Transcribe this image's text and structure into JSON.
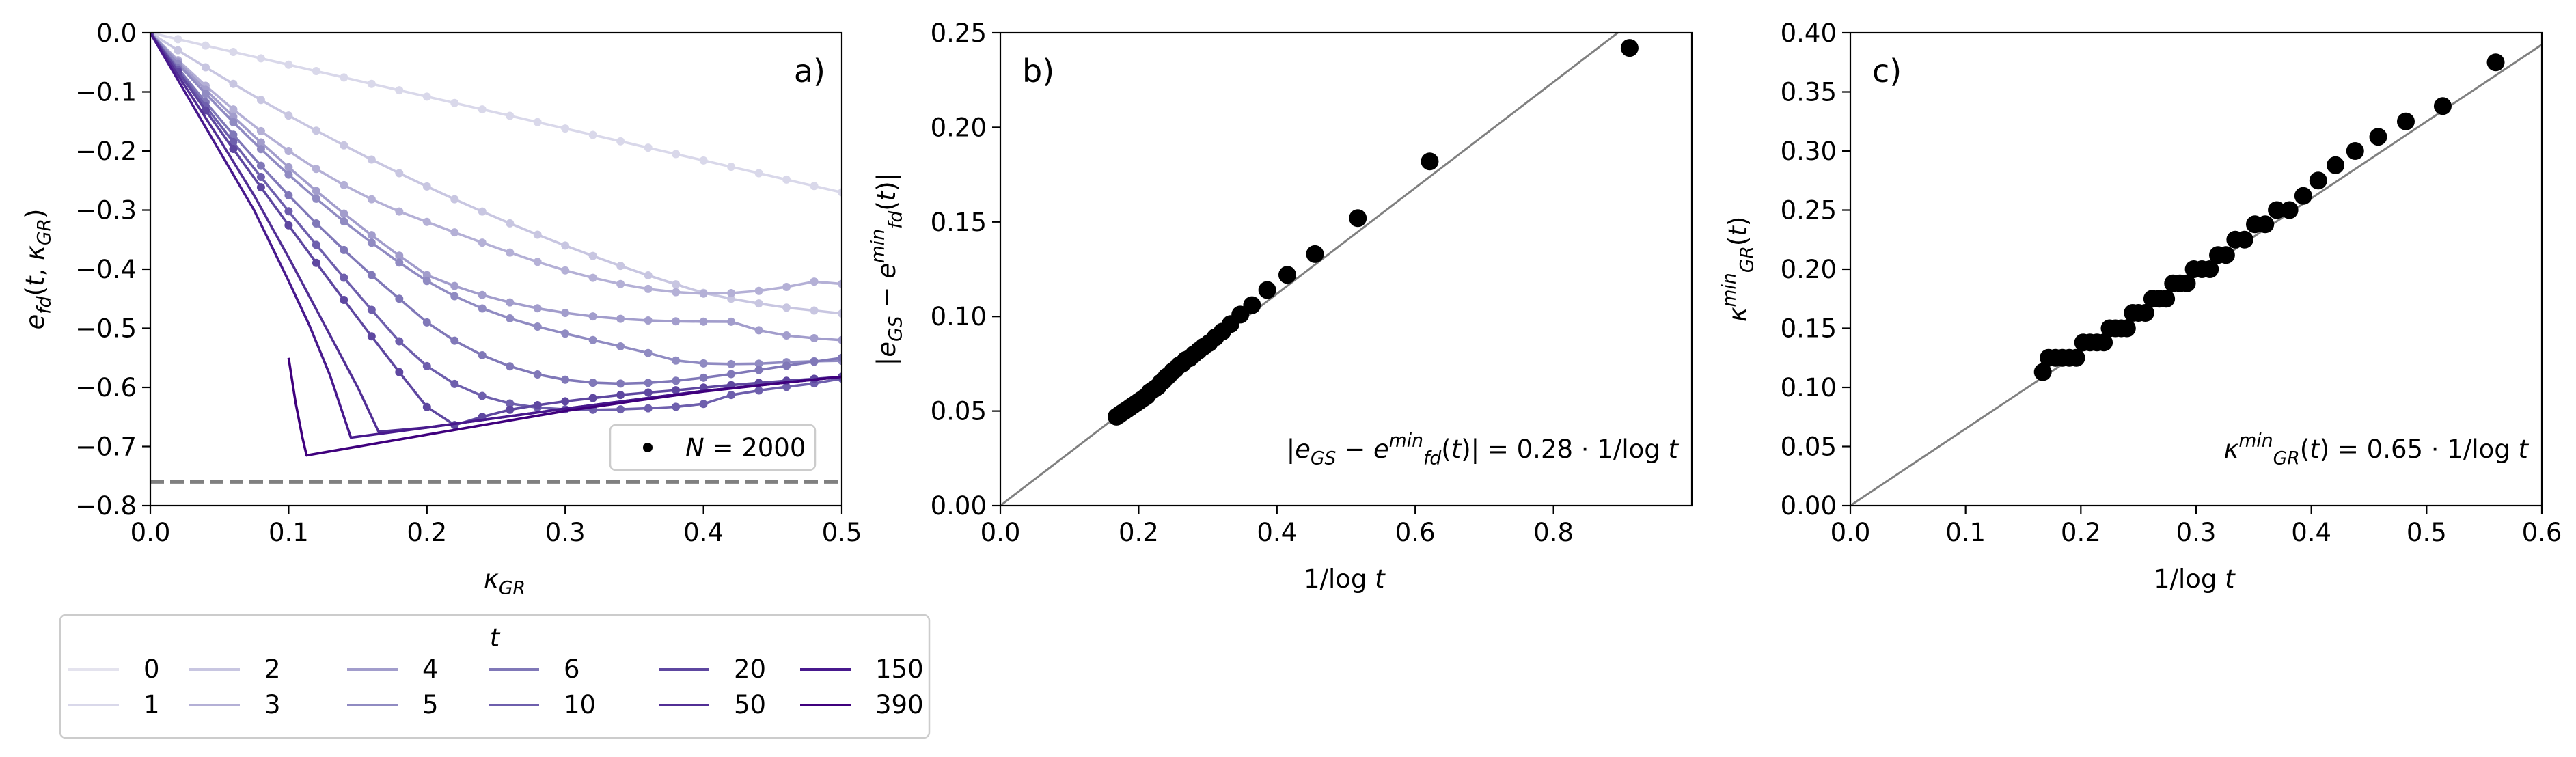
{
  "chart_data": [
    {
      "type": "line",
      "panel_label": "a)",
      "xlabel": "κ_GR",
      "ylabel": "e_fd(t, κ_GR)",
      "xlim": [
        0.0,
        0.5
      ],
      "ylim": [
        -0.8,
        0.0
      ],
      "xticks": [
        "0.0",
        "0.1",
        "0.2",
        "0.3",
        "0.4",
        "0.5"
      ],
      "yticks": [
        "0.0",
        "−0.1",
        "−0.2",
        "−0.3",
        "−0.4",
        "−0.5",
        "−0.6",
        "−0.7",
        "−0.8"
      ],
      "reference_line": {
        "y": -0.76,
        "style": "dashed",
        "color": "#808080"
      },
      "marker_legend": {
        "label": "N = 2000",
        "placement": "lower-right"
      },
      "legend": {
        "title": "t",
        "placement": "below",
        "entries": [
          "0",
          "1",
          "2",
          "3",
          "4",
          "5",
          "6",
          "10",
          "20",
          "50",
          "150",
          "390"
        ]
      },
      "colors": [
        "#e4e3ee",
        "#d9d8ea",
        "#c8c6e1",
        "#b4b0d6",
        "#a29dcc",
        "#908bc2",
        "#8078b8",
        "#6e5fad",
        "#5e47a0",
        "#522f95",
        "#48198d",
        "#3f007d"
      ],
      "series": [
        {
          "name": "1",
          "x": [
            0.0,
            0.02,
            0.04,
            0.06,
            0.08,
            0.1,
            0.12,
            0.14,
            0.16,
            0.18,
            0.2,
            0.22,
            0.24,
            0.26,
            0.28,
            0.3,
            0.32,
            0.34,
            0.36,
            0.38,
            0.4,
            0.42,
            0.44,
            0.46,
            0.48,
            0.5
          ],
          "y": [
            0.0,
            -0.0108,
            -0.0216,
            -0.0324,
            -0.0432,
            -0.054,
            -0.0648,
            -0.0756,
            -0.0864,
            -0.0972,
            -0.108,
            -0.1188,
            -0.1296,
            -0.1404,
            -0.1512,
            -0.162,
            -0.1728,
            -0.1836,
            -0.1944,
            -0.2052,
            -0.216,
            -0.2268,
            -0.2376,
            -0.2484,
            -0.2592,
            -0.27
          ],
          "markers": true
        },
        {
          "name": "2",
          "x": [
            0.0,
            0.02,
            0.04,
            0.06,
            0.08,
            0.1,
            0.12,
            0.14,
            0.16,
            0.18,
            0.2,
            0.22,
            0.24,
            0.26,
            0.28,
            0.3,
            0.32,
            0.34,
            0.36,
            0.38,
            0.4,
            0.42,
            0.44,
            0.46,
            0.48,
            0.5
          ],
          "y": [
            0.0,
            -0.0296,
            -0.0584,
            -0.0864,
            -0.1136,
            -0.14,
            -0.1656,
            -0.1904,
            -0.2144,
            -0.2376,
            -0.26,
            -0.2816,
            -0.3024,
            -0.3224,
            -0.3416,
            -0.36,
            -0.3776,
            -0.3944,
            -0.4104,
            -0.4256,
            -0.44,
            -0.45,
            -0.458,
            -0.465,
            -0.47,
            -0.475
          ],
          "markers": true
        },
        {
          "name": "3",
          "x": [
            0.0,
            0.02,
            0.04,
            0.06,
            0.08,
            0.1,
            0.12,
            0.14,
            0.16,
            0.18,
            0.2,
            0.22,
            0.24,
            0.26,
            0.28,
            0.3,
            0.32,
            0.34,
            0.36,
            0.38,
            0.4,
            0.42,
            0.44,
            0.46,
            0.48,
            0.5
          ],
          "y": [
            0.0,
            -0.0464,
            -0.0896,
            -0.1296,
            -0.1664,
            -0.2,
            -0.2304,
            -0.2576,
            -0.2816,
            -0.3024,
            -0.32,
            -0.3377,
            -0.3551,
            -0.3718,
            -0.3876,
            -0.402,
            -0.4146,
            -0.4252,
            -0.4334,
            -0.4389,
            -0.4414,
            -0.4405,
            -0.4367,
            -0.4301,
            -0.421,
            -0.425
          ],
          "markers": true
        },
        {
          "name": "4",
          "x": [
            0.0,
            0.02,
            0.04,
            0.06,
            0.08,
            0.1,
            0.12,
            0.14,
            0.16,
            0.18,
            0.2,
            0.22,
            0.24,
            0.26,
            0.28,
            0.3,
            0.32,
            0.34,
            0.36,
            0.38,
            0.4,
            0.42,
            0.44,
            0.46,
            0.48,
            0.5
          ],
          "y": [
            0.0,
            -0.0491,
            -0.0964,
            -0.1419,
            -0.1856,
            -0.2275,
            -0.2676,
            -0.3059,
            -0.3424,
            -0.3771,
            -0.41,
            -0.4284,
            -0.4437,
            -0.4562,
            -0.4662,
            -0.474,
            -0.4799,
            -0.484,
            -0.4867,
            -0.4882,
            -0.4888,
            -0.4889,
            -0.5033,
            -0.5121,
            -0.5168,
            -0.52
          ],
          "markers": true
        },
        {
          "name": "5",
          "x": [
            0.0,
            0.02,
            0.04,
            0.06,
            0.08,
            0.1,
            0.12,
            0.14,
            0.16,
            0.18,
            0.2,
            0.22,
            0.24,
            0.26,
            0.28,
            0.3,
            0.32,
            0.34,
            0.36,
            0.38,
            0.4,
            0.42,
            0.44,
            0.46,
            0.48,
            0.5
          ],
          "y": [
            0.0,
            -0.0528,
            -0.1032,
            -0.1512,
            -0.1968,
            -0.24,
            -0.2808,
            -0.3192,
            -0.3552,
            -0.3888,
            -0.42,
            -0.4457,
            -0.4665,
            -0.4833,
            -0.4971,
            -0.509,
            -0.5199,
            -0.5306,
            -0.5419,
            -0.5546,
            -0.5594,
            -0.5605,
            -0.5599,
            -0.5574,
            -0.5558,
            -0.555
          ],
          "markers": true
        },
        {
          "name": "6",
          "x": [
            0.0,
            0.02,
            0.04,
            0.06,
            0.08,
            0.1,
            0.12,
            0.14,
            0.16,
            0.18,
            0.2,
            0.22,
            0.24,
            0.26,
            0.28,
            0.3,
            0.32,
            0.34,
            0.36,
            0.38,
            0.4,
            0.42,
            0.44,
            0.46,
            0.48,
            0.5
          ],
          "y": [
            0.0,
            -0.06,
            -0.1175,
            -0.1725,
            -0.225,
            -0.275,
            -0.3225,
            -0.3675,
            -0.41,
            -0.45,
            -0.49,
            -0.521,
            -0.5456,
            -0.5644,
            -0.578,
            -0.587,
            -0.592,
            -0.5935,
            -0.5922,
            -0.5888,
            -0.5836,
            -0.5774,
            -0.5705,
            -0.5634,
            -0.5565,
            -0.55
          ],
          "markers": true
        },
        {
          "name": "10",
          "x": [
            0.0,
            0.02,
            0.04,
            0.06,
            0.08,
            0.1,
            0.12,
            0.14,
            0.16,
            0.18,
            0.2,
            0.22,
            0.24,
            0.26,
            0.28,
            0.3,
            0.32,
            0.34,
            0.36,
            0.38,
            0.4,
            0.42,
            0.44,
            0.46,
            0.48,
            0.5
          ],
          "y": [
            0.0,
            -0.0628,
            -0.1244,
            -0.1848,
            -0.244,
            -0.302,
            -0.3588,
            -0.4144,
            -0.4688,
            -0.522,
            -0.564,
            -0.5941,
            -0.6145,
            -0.6272,
            -0.6342,
            -0.6372,
            -0.6379,
            -0.6371,
            -0.6354,
            -0.6328,
            -0.628,
            -0.6129,
            -0.6052,
            -0.5991,
            -0.5932,
            -0.585
          ],
          "markers": true
        },
        {
          "name": "20",
          "x": [
            0.0,
            0.02,
            0.04,
            0.06,
            0.08,
            0.1,
            0.12,
            0.14,
            0.16,
            0.18,
            0.2,
            0.22,
            0.24,
            0.26,
            0.28,
            0.3,
            0.32,
            0.34,
            0.36,
            0.38,
            0.4,
            0.42,
            0.44,
            0.46,
            0.48,
            0.5
          ],
          "y": [
            0.0,
            -0.0657,
            -0.1313,
            -0.1966,
            -0.2614,
            -0.3257,
            -0.3893,
            -0.452,
            -0.5136,
            -0.5741,
            -0.6332,
            -0.6637,
            -0.6498,
            -0.6378,
            -0.6301,
            -0.6236,
            -0.6181,
            -0.6128,
            -0.6087,
            -0.6048,
            -0.6003,
            -0.5961,
            -0.5924,
            -0.5888,
            -0.5854,
            -0.582
          ],
          "markers": true
        },
        {
          "name": "50",
          "x": [
            0.0,
            0.025,
            0.05,
            0.075,
            0.1,
            0.125,
            0.15,
            0.165,
            0.2,
            0.25,
            0.3,
            0.35,
            0.4,
            0.45,
            0.5
          ],
          "y": [
            0.0,
            -0.09,
            -0.18,
            -0.275,
            -0.38,
            -0.49,
            -0.6,
            -0.675,
            -0.668,
            -0.652,
            -0.636,
            -0.621,
            -0.606,
            -0.594,
            -0.582
          ],
          "markers": false
        },
        {
          "name": "150",
          "x": [
            0.0,
            0.025,
            0.05,
            0.075,
            0.1,
            0.115,
            0.13,
            0.145,
            0.2,
            0.25,
            0.3,
            0.35,
            0.4,
            0.45,
            0.5
          ],
          "y": [
            0.0,
            -0.1,
            -0.2,
            -0.3,
            -0.42,
            -0.495,
            -0.58,
            -0.685,
            -0.668,
            -0.652,
            -0.636,
            -0.621,
            -0.606,
            -0.594,
            -0.582
          ],
          "markers": false
        },
        {
          "name": "390",
          "x": [
            0.1,
            0.105,
            0.11,
            0.113,
            0.2,
            0.25,
            0.3,
            0.35,
            0.4,
            0.45,
            0.5
          ],
          "y": [
            -0.55,
            -0.625,
            -0.685,
            -0.715,
            -0.68,
            -0.66,
            -0.64,
            -0.623,
            -0.607,
            -0.594,
            -0.582
          ],
          "markers": false
        }
      ]
    },
    {
      "type": "scatter",
      "panel_label": "b)",
      "xlabel": "1/log t",
      "ylabel": "|e_GS − e_fd^min(t)|",
      "xlim": [
        0.0,
        1.0
      ],
      "ylim": [
        0.0,
        0.25
      ],
      "xticks": [
        "0.0",
        "0.2",
        "0.4",
        "0.6",
        "0.8"
      ],
      "yticks": [
        "0.00",
        "0.05",
        "0.10",
        "0.15",
        "0.20",
        "0.25"
      ],
      "fit": {
        "slope": 0.28,
        "label": "|e_GS − e_fd^min(t)| = 0.28 · 1/log t",
        "color": "#808080"
      },
      "points": [
        [
          0.91,
          0.242
        ],
        [
          0.621,
          0.182
        ],
        [
          0.517,
          0.152
        ],
        [
          0.455,
          0.133
        ],
        [
          0.415,
          0.122
        ],
        [
          0.386,
          0.114
        ],
        [
          0.364,
          0.106
        ],
        [
          0.347,
          0.101
        ],
        [
          0.333,
          0.096
        ],
        [
          0.321,
          0.092
        ],
        [
          0.311,
          0.089
        ],
        [
          0.302,
          0.086
        ],
        [
          0.294,
          0.084
        ],
        [
          0.287,
          0.082
        ],
        [
          0.28,
          0.08
        ],
        [
          0.274,
          0.078
        ],
        [
          0.268,
          0.077
        ],
        [
          0.263,
          0.075
        ],
        [
          0.258,
          0.074
        ],
        [
          0.253,
          0.072
        ],
        [
          0.249,
          0.071
        ],
        [
          0.244,
          0.069
        ],
        [
          0.24,
          0.068
        ],
        [
          0.236,
          0.066
        ],
        [
          0.232,
          0.065
        ],
        [
          0.228,
          0.063
        ],
        [
          0.224,
          0.062
        ],
        [
          0.22,
          0.061
        ],
        [
          0.216,
          0.06
        ],
        [
          0.212,
          0.058
        ],
        [
          0.208,
          0.057
        ],
        [
          0.204,
          0.056
        ],
        [
          0.2,
          0.055
        ],
        [
          0.196,
          0.054
        ],
        [
          0.192,
          0.053
        ],
        [
          0.188,
          0.052
        ],
        [
          0.184,
          0.051
        ],
        [
          0.18,
          0.05
        ],
        [
          0.176,
          0.049
        ],
        [
          0.172,
          0.048
        ],
        [
          0.168,
          0.047
        ]
      ]
    },
    {
      "type": "scatter",
      "panel_label": "c)",
      "xlabel": "1/log t",
      "ylabel": "κ_GR^min(t)",
      "xlim": [
        0.0,
        0.6
      ],
      "ylim": [
        0.0,
        0.4
      ],
      "xticks": [
        "0.0",
        "0.1",
        "0.2",
        "0.3",
        "0.4",
        "0.5",
        "0.6"
      ],
      "yticks": [
        "0.00",
        "0.05",
        "0.10",
        "0.15",
        "0.20",
        "0.25",
        "0.30",
        "0.35",
        "0.40"
      ],
      "fit": {
        "slope": 0.65,
        "label": "κ_GR^min(t) = 0.65 · 1/log t",
        "color": "#808080"
      },
      "points": [
        [
          0.56,
          0.375
        ],
        [
          0.514,
          0.338
        ],
        [
          0.482,
          0.325
        ],
        [
          0.458,
          0.312
        ],
        [
          0.438,
          0.3
        ],
        [
          0.421,
          0.288
        ],
        [
          0.406,
          0.275
        ],
        [
          0.393,
          0.262
        ],
        [
          0.381,
          0.25
        ],
        [
          0.37,
          0.25
        ],
        [
          0.36,
          0.238
        ],
        [
          0.351,
          0.238
        ],
        [
          0.342,
          0.225
        ],
        [
          0.334,
          0.225
        ],
        [
          0.326,
          0.212
        ],
        [
          0.319,
          0.212
        ],
        [
          0.312,
          0.2
        ],
        [
          0.305,
          0.2
        ],
        [
          0.298,
          0.2
        ],
        [
          0.292,
          0.188
        ],
        [
          0.286,
          0.188
        ],
        [
          0.28,
          0.188
        ],
        [
          0.274,
          0.175
        ],
        [
          0.268,
          0.175
        ],
        [
          0.262,
          0.175
        ],
        [
          0.256,
          0.163
        ],
        [
          0.25,
          0.163
        ],
        [
          0.245,
          0.163
        ],
        [
          0.24,
          0.15
        ],
        [
          0.235,
          0.15
        ],
        [
          0.23,
          0.15
        ],
        [
          0.225,
          0.15
        ],
        [
          0.22,
          0.138
        ],
        [
          0.214,
          0.138
        ],
        [
          0.208,
          0.138
        ],
        [
          0.202,
          0.138
        ],
        [
          0.196,
          0.125
        ],
        [
          0.19,
          0.125
        ],
        [
          0.184,
          0.125
        ],
        [
          0.178,
          0.125
        ],
        [
          0.172,
          0.125
        ],
        [
          0.167,
          0.113
        ]
      ]
    }
  ]
}
